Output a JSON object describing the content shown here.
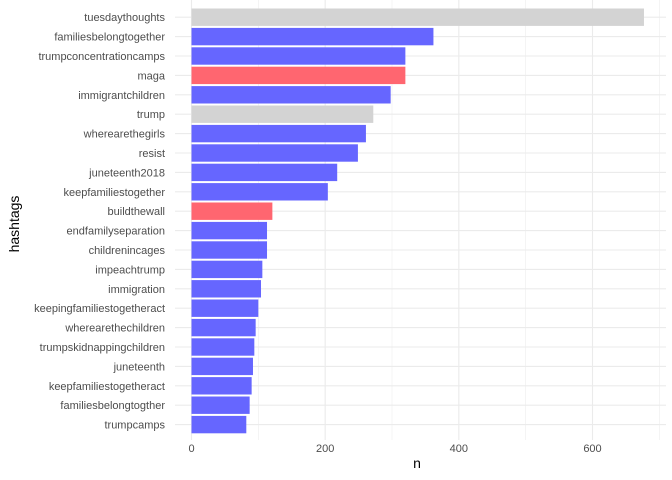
{
  "chart_data": {
    "type": "bar",
    "orientation": "horizontal",
    "xlabel": "n",
    "ylabel": "hashtags",
    "xlim": [
      0,
      700
    ],
    "x_ticks": [
      0,
      200,
      400,
      600
    ],
    "grid": true,
    "legend": "none",
    "colors": {
      "blue": "#6666FF",
      "red": "#FF6670",
      "gray": "#D3D3D3"
    },
    "bars": [
      {
        "category": "tuesdaythoughts",
        "value": 677,
        "color": "gray"
      },
      {
        "category": "familiesbelongtogether",
        "value": 362,
        "color": "blue"
      },
      {
        "category": "trumpconcentrationcamps",
        "value": 320,
        "color": "blue"
      },
      {
        "category": "maga",
        "value": 320,
        "color": "red"
      },
      {
        "category": "immigrantchildren",
        "value": 298,
        "color": "blue"
      },
      {
        "category": "trump",
        "value": 272,
        "color": "gray"
      },
      {
        "category": "wherearethegirls",
        "value": 261,
        "color": "blue"
      },
      {
        "category": "resist",
        "value": 249,
        "color": "blue"
      },
      {
        "category": "juneteenth2018",
        "value": 218,
        "color": "blue"
      },
      {
        "category": "keepfamiliestogether",
        "value": 204,
        "color": "blue"
      },
      {
        "category": "buildthewall",
        "value": 121,
        "color": "red"
      },
      {
        "category": "endfamilyseparation",
        "value": 113,
        "color": "blue"
      },
      {
        "category": "childrenincages",
        "value": 113,
        "color": "blue"
      },
      {
        "category": "impeachtrump",
        "value": 106,
        "color": "blue"
      },
      {
        "category": "immigration",
        "value": 104,
        "color": "blue"
      },
      {
        "category": "keepingfamiliestogetheract",
        "value": 100,
        "color": "blue"
      },
      {
        "category": "wherearethechildren",
        "value": 96,
        "color": "blue"
      },
      {
        "category": "trumpskidnappingchildren",
        "value": 94,
        "color": "blue"
      },
      {
        "category": "juneteenth",
        "value": 92,
        "color": "blue"
      },
      {
        "category": "keepfamiliestogetheract",
        "value": 90,
        "color": "blue"
      },
      {
        "category": "familiesbelongtogther",
        "value": 87,
        "color": "blue"
      },
      {
        "category": "trumpcamps",
        "value": 82,
        "color": "blue"
      }
    ]
  }
}
